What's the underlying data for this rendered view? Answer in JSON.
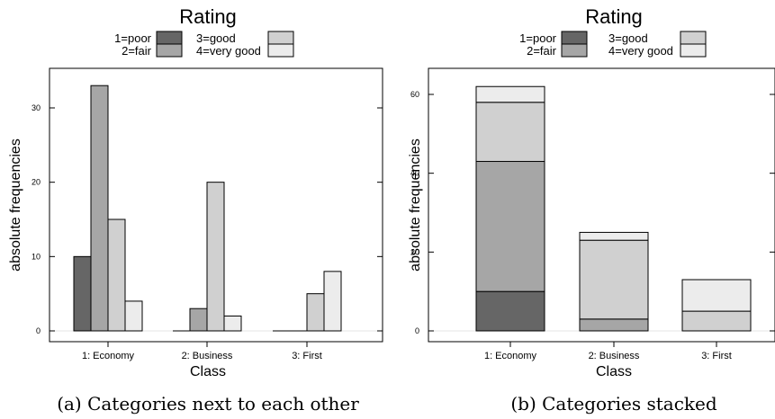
{
  "colors": {
    "1=poor": "#666666",
    "2=fair": "#a6a6a6",
    "3=good": "#d0d0d0",
    "4=very good": "#ececec",
    "baseline": "#e6e6e6"
  },
  "chart_data": [
    {
      "type": "bar",
      "mode": "grouped",
      "title": "Rating",
      "legend_position": "top",
      "categories": [
        "1: Economy",
        "2: Business",
        "3: First"
      ],
      "series": [
        {
          "name": "1=poor",
          "values": [
            10,
            0,
            0
          ]
        },
        {
          "name": "2=fair",
          "values": [
            33,
            3,
            0
          ]
        },
        {
          "name": "3=good",
          "values": [
            15,
            20,
            5
          ]
        },
        {
          "name": "4=very good",
          "values": [
            4,
            2,
            8
          ]
        }
      ],
      "xlabel": "Class",
      "ylabel": "absolute frequencies",
      "ylim": [
        0,
        35
      ],
      "yticks": [
        0,
        10,
        20,
        30
      ],
      "caption": "(a) Categories next to each other"
    },
    {
      "type": "bar",
      "mode": "stacked",
      "title": "Rating",
      "legend_position": "top",
      "categories": [
        "1: Economy",
        "2: Business",
        "3: First"
      ],
      "series": [
        {
          "name": "1=poor",
          "values": [
            10,
            0,
            0
          ]
        },
        {
          "name": "2=fair",
          "values": [
            33,
            3,
            0
          ]
        },
        {
          "name": "3=good",
          "values": [
            15,
            20,
            5
          ]
        },
        {
          "name": "4=very good",
          "values": [
            4,
            2,
            8
          ]
        }
      ],
      "xlabel": "Class",
      "ylabel": "absolute frequencies",
      "ylim": [
        0,
        66
      ],
      "yticks": [
        0,
        20,
        40,
        60
      ],
      "caption": "(b) Categories stacked"
    }
  ]
}
